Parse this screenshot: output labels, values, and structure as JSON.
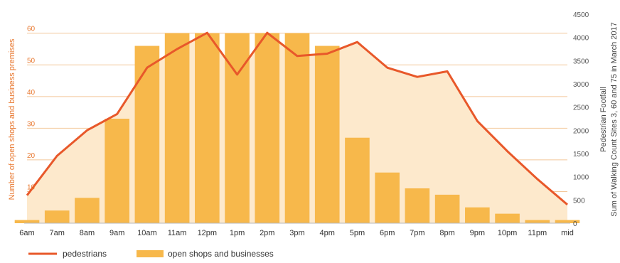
{
  "chart_data": {
    "type": "bar",
    "categories": [
      "6am",
      "7am",
      "8am",
      "9am",
      "10am",
      "11am",
      "12pm",
      "1pm",
      "2pm",
      "3pm",
      "4pm",
      "5pm",
      "6pm",
      "7pm",
      "8pm",
      "9pm",
      "10pm",
      "11pm",
      "mid"
    ],
    "series": [
      {
        "name": "open shops and businesses",
        "type": "bar",
        "axis": "left",
        "color": "#f7b84b",
        "values": [
          1,
          4,
          8,
          33,
          56,
          60,
          60,
          60,
          60,
          60,
          56,
          27,
          16,
          11,
          9,
          5,
          3,
          1,
          1
        ]
      },
      {
        "name": "pedestrians",
        "type": "line",
        "axis": "right",
        "color": "#e8582a",
        "values": [
          600,
          1450,
          2000,
          2350,
          3350,
          3750,
          4100,
          3200,
          4100,
          3600,
          3650,
          3900,
          3350,
          3150,
          3270,
          2200,
          1550,
          950,
          400
        ]
      }
    ],
    "left_axis": {
      "label": "Number of open shops and business premises",
      "ticks": [
        10,
        20,
        30,
        40,
        50,
        60
      ],
      "range": [
        0,
        66
      ]
    },
    "right_axis": {
      "label_line1": "Pedestrian Footfall",
      "label_line2": "Sum of Walking Count Sites 3, 60 and 75  in March 2017",
      "ticks": [
        0,
        500,
        1000,
        1500,
        2000,
        2500,
        3000,
        3500,
        4000,
        4500
      ],
      "range": [
        0,
        4500
      ]
    },
    "grid": true,
    "legend_position": "bottom-left",
    "area_fill_color": "#fde9cc"
  },
  "legend": {
    "line_label": "pedestrians",
    "bar_label": "open shops and businesses"
  }
}
